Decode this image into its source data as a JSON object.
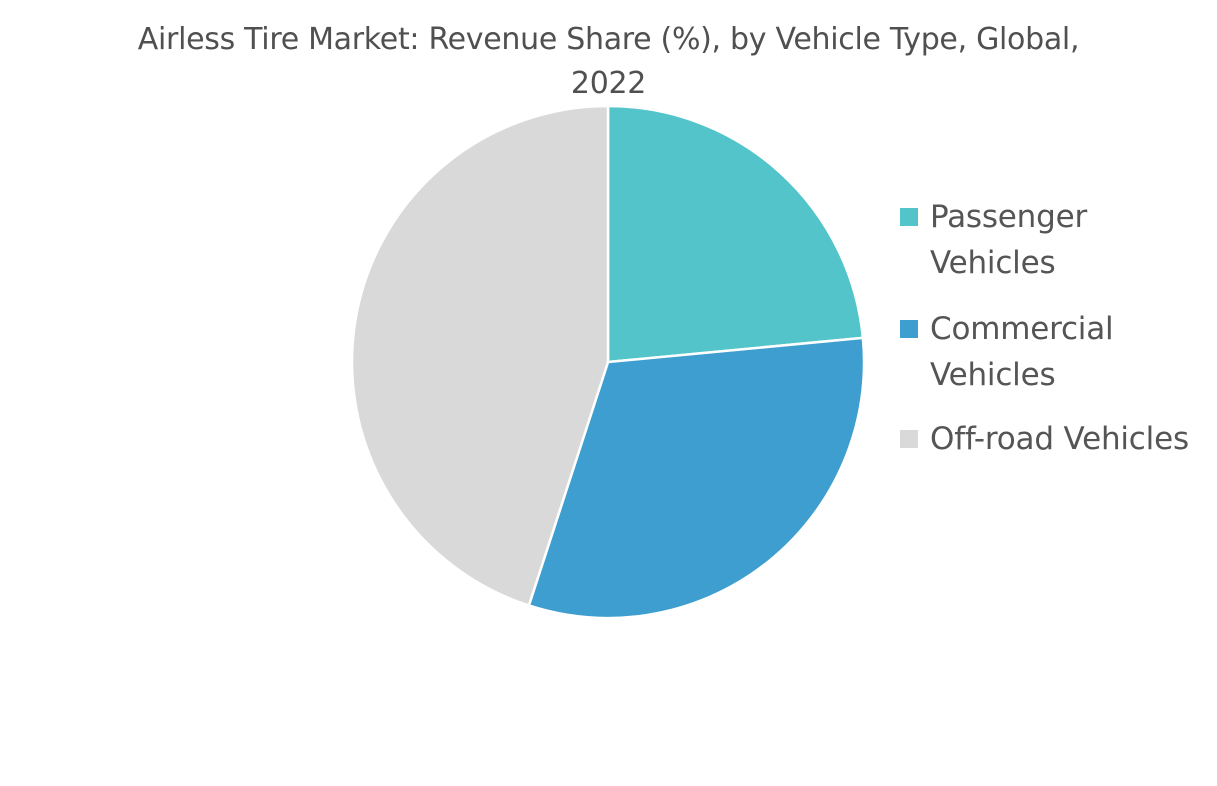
{
  "chart_data": {
    "type": "pie",
    "title": "Airless Tire Market: Revenue Share (%), by Vehicle Type, Global, 2022",
    "title_lines": [
      "Airless Tire Market: Revenue Share (%), by Vehicle Type, Global,",
      "2022"
    ],
    "categories": [
      "Passenger Vehicles",
      "Commercial Vehicles",
      "Off-road Vehicles"
    ],
    "legend_lines": [
      [
        "Passenger",
        "Vehicles"
      ],
      [
        "Commercial",
        "Vehicles"
      ],
      [
        "Off-road Vehicles"
      ]
    ],
    "values": [
      23.5,
      31.5,
      45.0
    ],
    "colors": [
      "#52C4CA",
      "#3E9ECF",
      "#D9D9D9"
    ],
    "legend_position": "right",
    "start_angle": "12 o'clock, clockwise"
  }
}
